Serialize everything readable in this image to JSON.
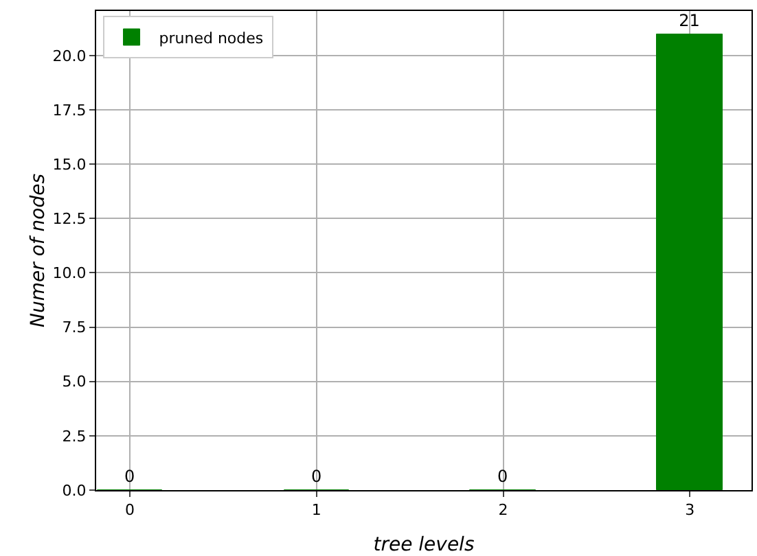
{
  "chart_data": {
    "type": "bar",
    "xlabel": "tree levels",
    "ylabel": "Numer of nodes",
    "x": [
      0,
      1,
      2,
      3
    ],
    "series": [
      {
        "name": "pruned nodes",
        "color": "#008000",
        "values": [
          0,
          0,
          0,
          21
        ]
      }
    ],
    "xlim": [
      -0.18,
      3.33
    ],
    "xticks": [
      0,
      1,
      2,
      3
    ],
    "ylim": [
      0,
      22.05
    ],
    "yticks": [
      {
        "value": 0,
        "label": "0.0"
      },
      {
        "value": 2.5,
        "label": "2.5"
      },
      {
        "value": 5,
        "label": "5.0"
      },
      {
        "value": 7.5,
        "label": "7.5"
      },
      {
        "value": 10,
        "label": "10.0"
      },
      {
        "value": 12.5,
        "label": "12.5"
      },
      {
        "value": 15,
        "label": "15.0"
      },
      {
        "value": 17.5,
        "label": "17.5"
      },
      {
        "value": 20,
        "label": "20.0"
      }
    ],
    "grid": true,
    "legend": "top left",
    "data_labels": true
  }
}
